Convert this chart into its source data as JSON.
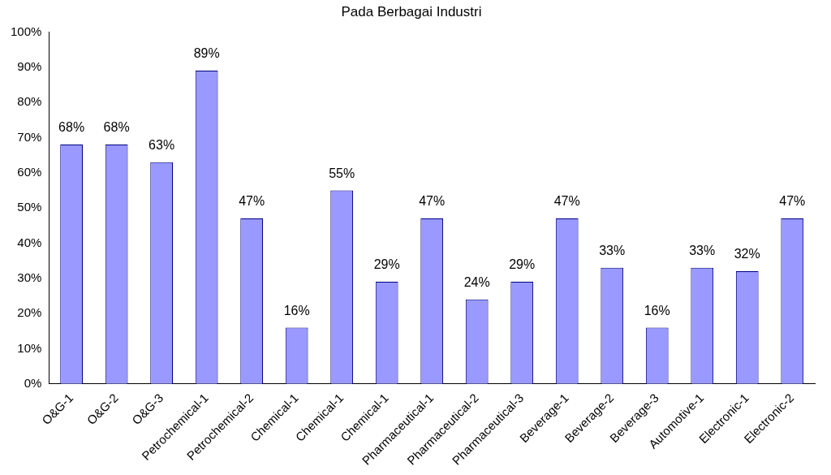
{
  "chart_data": {
    "type": "bar",
    "title": "Pada Berbagai Industri",
    "categories": [
      "O&G-1",
      "O&G-2",
      "O&G-3",
      "Petrochemical-1",
      "Petrochemical-2",
      "Chemical-1",
      "Chemical-1",
      "Chemical-1",
      "Pharmaceutical-1",
      "Pharmaceutical-2",
      "Pharmaceutical-3",
      "Beverage-1",
      "Beverage-2",
      "Beverage-3",
      "Automotive-1",
      "Electronic-1",
      "Electronic-2"
    ],
    "values": [
      68,
      68,
      63,
      89,
      47,
      16,
      55,
      29,
      47,
      24,
      29,
      47,
      33,
      16,
      33,
      32,
      47
    ],
    "value_labels": [
      "68%",
      "68%",
      "63%",
      "89%",
      "47%",
      "16%",
      "55%",
      "29%",
      "47%",
      "24%",
      "29%",
      "47%",
      "33%",
      "16%",
      "33%",
      "32%",
      "47%"
    ],
    "color": "#9999ff",
    "ylim": [
      0,
      100
    ],
    "yticks": [
      {
        "value": 0,
        "label": "0%"
      },
      {
        "value": 10,
        "label": "10%"
      },
      {
        "value": 20,
        "label": "20%"
      },
      {
        "value": 30,
        "label": "30%"
      },
      {
        "value": 40,
        "label": "40%"
      },
      {
        "value": 50,
        "label": "50%"
      },
      {
        "value": 60,
        "label": "60%"
      },
      {
        "value": 70,
        "label": "70%"
      },
      {
        "value": 80,
        "label": "80%"
      },
      {
        "value": 90,
        "label": "90%"
      },
      {
        "value": 100,
        "label": "100%"
      }
    ],
    "grid": false,
    "legend": false
  }
}
